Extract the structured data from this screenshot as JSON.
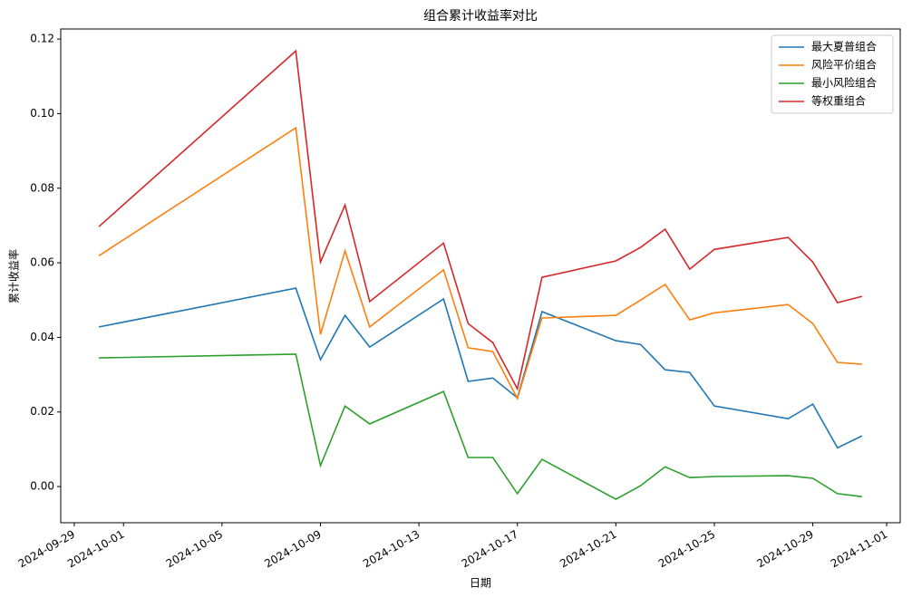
{
  "chart_data": {
    "type": "line",
    "title": "组合累计收益率对比",
    "x_label": "日期",
    "y_label": "累计收益率",
    "x": [
      "2024-09-30",
      "2024-10-08",
      "2024-10-09",
      "2024-10-10",
      "2024-10-11",
      "2024-10-14",
      "2024-10-15",
      "2024-10-16",
      "2024-10-17",
      "2024-10-18",
      "2024-10-21",
      "2024-10-22",
      "2024-10-23",
      "2024-10-24",
      "2024-10-25",
      "2024-10-28",
      "2024-10-29",
      "2024-10-30",
      "2024-10-31"
    ],
    "series": [
      {
        "name": "最大夏普组合",
        "color": "#1f77b4",
        "values": [
          0.0428,
          0.0532,
          0.034,
          0.0459,
          0.0374,
          0.0503,
          0.0282,
          0.0291,
          0.0238,
          0.0469,
          0.0391,
          0.0381,
          0.0313,
          0.0306,
          0.0216,
          0.0182,
          0.0221,
          0.0104,
          0.0136
        ]
      },
      {
        "name": "风险平价组合",
        "color": "#ff7f0e",
        "values": [
          0.0619,
          0.0962,
          0.0408,
          0.0632,
          0.0428,
          0.0581,
          0.0372,
          0.0362,
          0.0236,
          0.0452,
          0.0459,
          0.05,
          0.0542,
          0.0447,
          0.0466,
          0.0488,
          0.0437,
          0.0333,
          0.0328
        ]
      },
      {
        "name": "最小风险组合",
        "color": "#2ca02c",
        "values": [
          0.0345,
          0.0355,
          0.0056,
          0.0216,
          0.0168,
          0.0255,
          0.0078,
          0.0078,
          -0.0019,
          0.0073,
          -0.0034,
          0.0002,
          0.0053,
          0.0024,
          0.0027,
          0.0029,
          0.0022,
          -0.0019,
          -0.0027
        ]
      },
      {
        "name": "等权重组合",
        "color": "#d62728",
        "values": [
          0.0697,
          0.1168,
          0.0602,
          0.0755,
          0.0496,
          0.0653,
          0.0437,
          0.0386,
          0.0262,
          0.0561,
          0.0605,
          0.0641,
          0.069,
          0.0583,
          0.0636,
          0.0668,
          0.0602,
          0.0493,
          0.051
        ]
      }
    ],
    "xlim": [
      "2024-09-28T10:48",
      "2024-11-01T13:12"
    ],
    "xticks": [
      "2024-09-29",
      "2024-10-01",
      "2024-10-05",
      "2024-10-09",
      "2024-10-13",
      "2024-10-17",
      "2024-10-21",
      "2024-10-25",
      "2024-10-29",
      "2024-11-01"
    ],
    "ylim": [
      -0.0097,
      0.1227
    ],
    "yticks": [
      {
        "value": 0,
        "label": "0.00"
      },
      {
        "value": 0.02,
        "label": "0.02"
      },
      {
        "value": 0.04,
        "label": "0.04"
      },
      {
        "value": 0.06,
        "label": "0.06"
      },
      {
        "value": 0.08,
        "label": "0.08"
      },
      {
        "value": 0.1,
        "label": "0.10"
      },
      {
        "value": 0.12,
        "label": "0.12"
      }
    ],
    "legend": "upper right",
    "grid": false
  }
}
